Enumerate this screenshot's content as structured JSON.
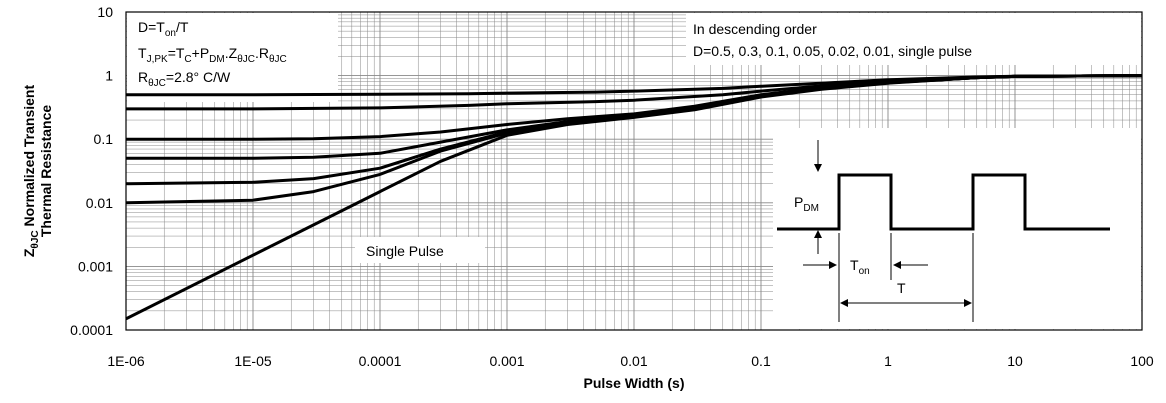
{
  "chart_data": {
    "type": "line",
    "title": "",
    "xlabel": "Pulse Width (s)",
    "ylabel_line1": "Z",
    "ylabel_line1_sub": "θJC",
    "ylabel_line1_rest": " Normalized Transient",
    "ylabel_line2": "Thermal Resistance",
    "x_scale": "log",
    "y_scale": "log",
    "xlim": [
      1e-06,
      100
    ],
    "ylim": [
      0.0001,
      10
    ],
    "x_tick_labels": [
      "1E-06",
      "1E-05",
      "0.0001",
      "0.001",
      "0.01",
      "0.1",
      "1",
      "10",
      "100"
    ],
    "y_tick_labels": [
      "0.0001",
      "0.001",
      "0.01",
      "0.1",
      "1",
      "10"
    ],
    "grid": true,
    "legend": "none",
    "line_color": "#000000",
    "series": [
      {
        "x": [
          1e-06,
          1e-05,
          0.0001,
          0.0005,
          0.001,
          0.005,
          0.01,
          0.05,
          0.1,
          0.5,
          1,
          5,
          10,
          100
        ],
        "values": [
          0.5,
          0.5,
          0.51,
          0.52,
          0.53,
          0.55,
          0.57,
          0.63,
          0.68,
          0.8,
          0.86,
          0.95,
          0.98,
          1.0
        ]
      },
      {
        "x": [
          1e-06,
          1e-05,
          0.0001,
          0.0005,
          0.001,
          0.005,
          0.01,
          0.05,
          0.1,
          0.5,
          1,
          5,
          10,
          100
        ],
        "values": [
          0.3,
          0.3,
          0.31,
          0.34,
          0.36,
          0.39,
          0.41,
          0.5,
          0.57,
          0.75,
          0.82,
          0.94,
          0.97,
          1.0
        ]
      },
      {
        "x": [
          1e-06,
          1e-05,
          3e-05,
          0.0001,
          0.0003,
          0.001,
          0.003,
          0.01,
          0.03,
          0.1,
          0.3,
          1,
          5,
          10,
          100
        ],
        "values": [
          0.1,
          0.1,
          0.102,
          0.11,
          0.13,
          0.17,
          0.21,
          0.25,
          0.33,
          0.5,
          0.65,
          0.78,
          0.93,
          0.97,
          1.0
        ]
      },
      {
        "x": [
          1e-06,
          1e-05,
          3e-05,
          0.0001,
          0.0003,
          0.001,
          0.003,
          0.01,
          0.03,
          0.1,
          0.3,
          1,
          5,
          10,
          100
        ],
        "values": [
          0.05,
          0.05,
          0.052,
          0.06,
          0.09,
          0.14,
          0.19,
          0.24,
          0.32,
          0.49,
          0.64,
          0.78,
          0.93,
          0.97,
          1.0
        ]
      },
      {
        "x": [
          1e-06,
          1e-05,
          3e-05,
          0.0001,
          0.0003,
          0.001,
          0.003,
          0.01,
          0.03,
          0.1,
          0.3,
          1,
          5,
          10,
          100
        ],
        "values": [
          0.02,
          0.021,
          0.024,
          0.035,
          0.07,
          0.13,
          0.18,
          0.23,
          0.31,
          0.48,
          0.63,
          0.77,
          0.93,
          0.97,
          1.0
        ]
      },
      {
        "x": [
          1e-06,
          1e-05,
          3e-05,
          0.0001,
          0.0003,
          0.001,
          0.003,
          0.01,
          0.03,
          0.1,
          0.3,
          1,
          5,
          10,
          100
        ],
        "values": [
          0.01,
          0.011,
          0.015,
          0.028,
          0.065,
          0.125,
          0.175,
          0.225,
          0.3,
          0.47,
          0.62,
          0.77,
          0.93,
          0.97,
          1.0
        ]
      },
      {
        "x": [
          1e-06,
          1e-05,
          0.0001,
          0.0003,
          0.001,
          0.003,
          0.01,
          0.03,
          0.1,
          0.3,
          1,
          5,
          10,
          100
        ],
        "values": [
          0.00015,
          0.0015,
          0.015,
          0.045,
          0.115,
          0.17,
          0.22,
          0.29,
          0.46,
          0.61,
          0.76,
          0.93,
          0.97,
          1.0
        ]
      }
    ],
    "annotations": {
      "formula_d_main": "D=T",
      "formula_d_sub": "on",
      "formula_d_tail": "/T",
      "formula_t_a": "T",
      "formula_t_a_sub": "J,PK",
      "formula_t_b": "=T",
      "formula_t_b_sub": "C",
      "formula_t_c": "+P",
      "formula_t_c_sub": "DM",
      "formula_t_d": ".Z",
      "formula_t_d_sub": "θJC",
      "formula_t_e": ".R",
      "formula_t_e_sub": "θJC",
      "formula_r_main": "R",
      "formula_r_sub": "θJC",
      "formula_r_tail": "=2.8°  C/W",
      "order_line1": "In descending order",
      "order_line2": "D=0.5, 0.3, 0.1, 0.05, 0.02, 0.01, single pulse",
      "single_pulse": "Single Pulse",
      "inset_pdm_main": "P",
      "inset_pdm_sub": "DM",
      "inset_ton_main": "T",
      "inset_ton_sub": "on",
      "inset_t": "T"
    }
  }
}
